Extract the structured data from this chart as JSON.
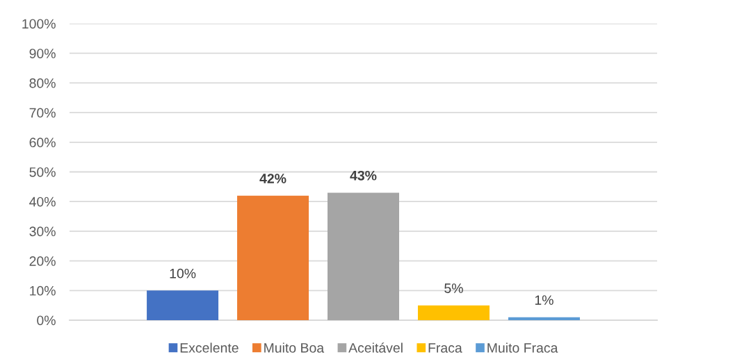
{
  "chart_data": {
    "type": "bar",
    "categories": [
      null
    ],
    "series": [
      {
        "name": "Excelente",
        "color": "#4472c4",
        "values": [
          10
        ],
        "value_labels": [
          "10%"
        ]
      },
      {
        "name": "Muito Boa",
        "color": "#ed7d31",
        "values": [
          42
        ],
        "value_labels": [
          "42%"
        ]
      },
      {
        "name": "Aceitável",
        "color": "#a5a5a5",
        "values": [
          43
        ],
        "value_labels": [
          "43%"
        ]
      },
      {
        "name": "Fraca",
        "color": "#ffc000",
        "values": [
          5
        ],
        "value_labels": [
          "5%"
        ]
      },
      {
        "name": "Muito Fraca",
        "color": "#5b9bd5",
        "values": [
          1
        ],
        "value_labels": [
          "1%"
        ]
      }
    ],
    "ylim": [
      0,
      100
    ],
    "yticks": [
      {
        "value": 0,
        "label": "0%"
      },
      {
        "value": 10,
        "label": "10%"
      },
      {
        "value": 20,
        "label": "20%"
      },
      {
        "value": 30,
        "label": "30%"
      },
      {
        "value": 40,
        "label": "40%"
      },
      {
        "value": 50,
        "label": "50%"
      },
      {
        "value": 60,
        "label": "60%"
      },
      {
        "value": 70,
        "label": "70%"
      },
      {
        "value": 80,
        "label": "80%"
      },
      {
        "value": 90,
        "label": "90%"
      },
      {
        "value": 100,
        "label": "100%"
      }
    ],
    "grid": "y",
    "legend": "bottom",
    "tick_labels": "y"
  }
}
